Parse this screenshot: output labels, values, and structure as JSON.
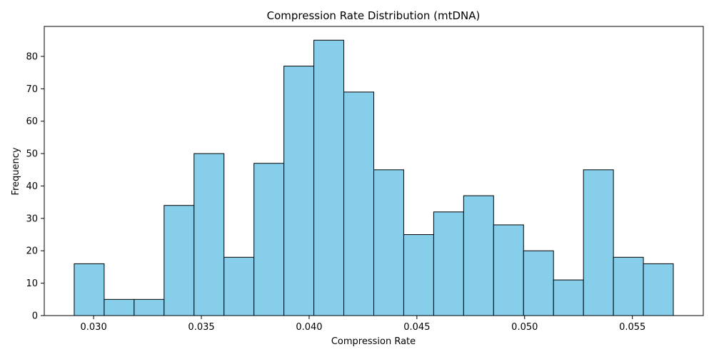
{
  "chart_data": {
    "type": "bar",
    "title": "Compression Rate Distribution (mtDNA)",
    "xlabel": "Compression Rate",
    "ylabel": "Frequency",
    "bar_color": "#87CEEB",
    "edge_color": "#000000",
    "bin_edges": [
      0.0291,
      0.03049,
      0.03188,
      0.03327,
      0.03466,
      0.03605,
      0.03744,
      0.03883,
      0.04022,
      0.04161,
      0.043,
      0.04439,
      0.04578,
      0.04717,
      0.04856,
      0.04995,
      0.05134,
      0.05273,
      0.05412,
      0.05551,
      0.0569
    ],
    "values": [
      16,
      5,
      5,
      34,
      50,
      18,
      47,
      77,
      85,
      69,
      45,
      25,
      32,
      37,
      28,
      20,
      11,
      45,
      18,
      16
    ],
    "xlim": [
      0.02771,
      0.05829
    ],
    "ylim": [
      0,
      89.25
    ],
    "x_ticks": [
      0.03,
      0.035,
      0.04,
      0.045,
      0.05,
      0.055
    ],
    "x_tick_labels": [
      "0.030",
      "0.035",
      "0.040",
      "0.045",
      "0.050",
      "0.055"
    ],
    "y_ticks": [
      0,
      10,
      20,
      30,
      40,
      50,
      60,
      70,
      80
    ],
    "y_tick_labels": [
      "0",
      "10",
      "20",
      "30",
      "40",
      "50",
      "60",
      "70",
      "80"
    ],
    "grid": false,
    "legend": false
  }
}
